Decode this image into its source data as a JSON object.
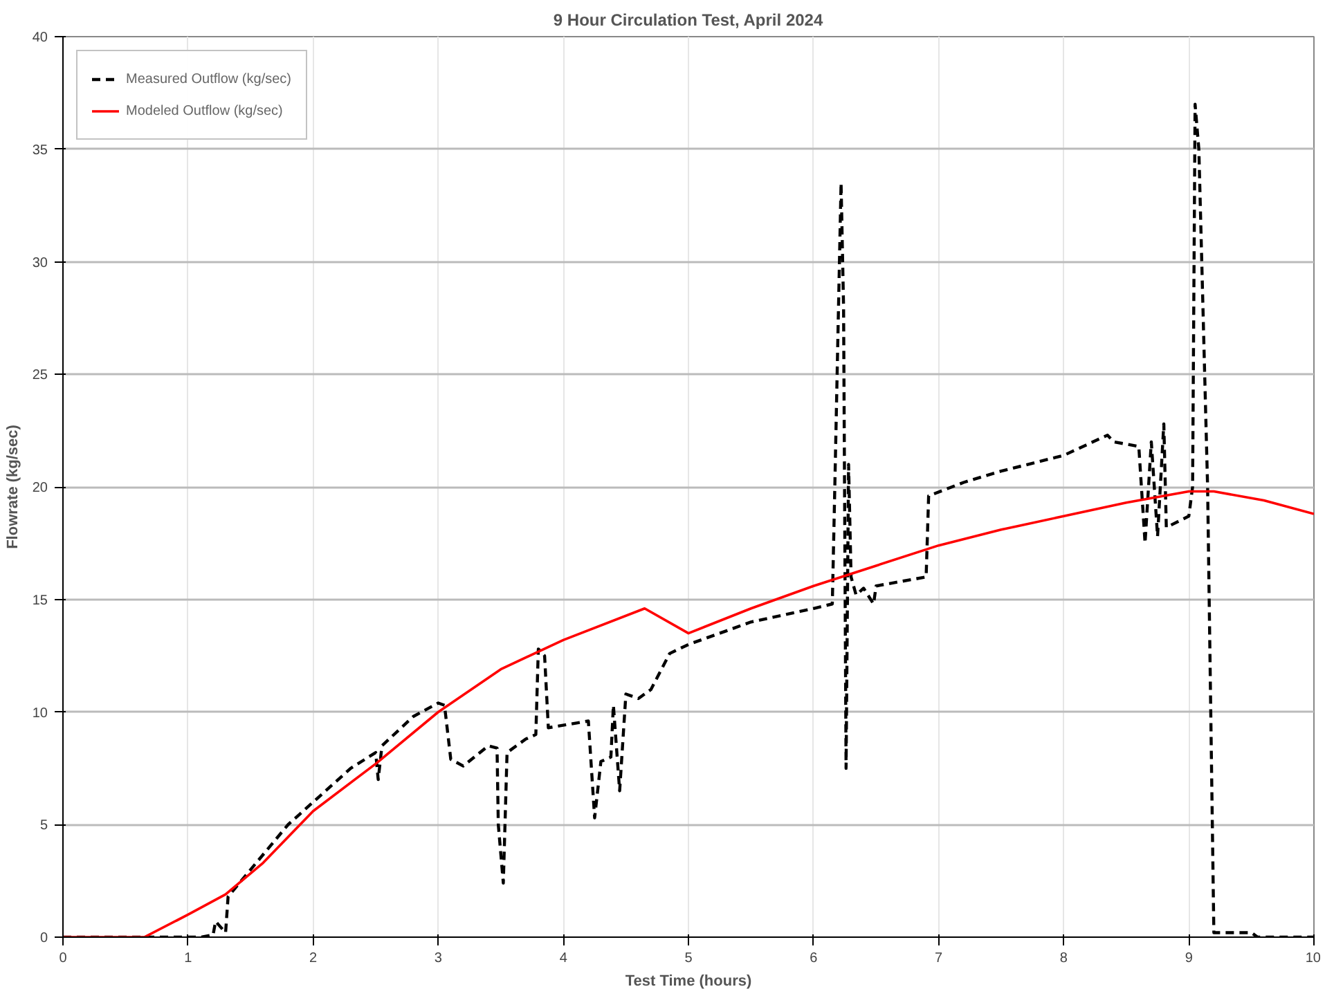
{
  "chart_data": {
    "type": "line",
    "title": "9 Hour Circulation Test, April 2024",
    "xlabel": "Test Time (hours)",
    "ylabel": "Flowrate (kg/sec)",
    "xlim": [
      0,
      10
    ],
    "xticks": [
      0,
      1,
      2,
      3,
      4,
      5,
      6,
      7,
      8,
      9,
      10
    ],
    "ylim": [
      0,
      40
    ],
    "yticks": [
      0,
      5,
      10,
      15,
      20,
      25,
      30,
      35,
      40
    ],
    "grid": true,
    "legend": "top left",
    "series": [
      {
        "name": "Measured Outflow (kg/sec)",
        "color": "#000000",
        "line_style": "dashed",
        "x": [
          0,
          1.1,
          1.2,
          1.22,
          1.3,
          1.32,
          1.5,
          1.8,
          2.0,
          2.3,
          2.5,
          2.52,
          2.55,
          2.8,
          3.0,
          3.05,
          3.1,
          3.2,
          3.4,
          3.47,
          3.48,
          3.52,
          3.55,
          3.7,
          3.78,
          3.8,
          3.85,
          3.88,
          4.2,
          4.25,
          4.3,
          4.38,
          4.4,
          4.45,
          4.5,
          4.6,
          4.7,
          4.85,
          5.0,
          5.5,
          6.0,
          6.15,
          6.17,
          6.22,
          6.24,
          6.26,
          6.28,
          6.3,
          6.34,
          6.4,
          6.48,
          6.5,
          6.9,
          6.92,
          7.2,
          7.5,
          8.0,
          8.35,
          8.4,
          8.6,
          8.65,
          8.7,
          8.75,
          8.8,
          8.82,
          9.0,
          9.03,
          9.05,
          9.08,
          9.15,
          9.2,
          9.5,
          9.55,
          10
        ],
        "values": [
          0,
          0,
          0.1,
          0.7,
          0.2,
          1.8,
          3.0,
          5.0,
          6.0,
          7.5,
          8.2,
          7.0,
          8.5,
          9.8,
          10.4,
          10.3,
          7.9,
          7.6,
          8.5,
          8.4,
          5.0,
          2.4,
          8.2,
          8.8,
          9.0,
          12.8,
          12.5,
          9.3,
          9.6,
          5.3,
          7.8,
          8.0,
          10.3,
          6.5,
          10.8,
          10.6,
          11.0,
          12.6,
          13.0,
          14.0,
          14.6,
          14.8,
          20.0,
          33.5,
          28.0,
          7.5,
          21.0,
          16.0,
          15.2,
          15.5,
          14.8,
          15.6,
          16.0,
          19.6,
          20.2,
          20.7,
          21.4,
          22.3,
          22.0,
          21.8,
          17.5,
          22.0,
          17.8,
          22.8,
          18.2,
          18.7,
          20.0,
          37.0,
          35.0,
          20.0,
          0.2,
          0.2,
          0,
          0
        ]
      },
      {
        "name": "Modeled Outflow (kg/sec)",
        "color": "#ff0000",
        "line_style": "solid",
        "x": [
          0,
          0.65,
          1,
          1.3,
          1.6,
          2,
          2.5,
          3,
          3.5,
          4,
          4.65,
          5,
          5.5,
          6,
          6.5,
          7,
          7.5,
          8,
          8.5,
          9,
          9.2,
          9.6,
          10
        ],
        "values": [
          0,
          0,
          1.0,
          1.9,
          3.3,
          5.6,
          7.7,
          10.0,
          11.9,
          13.2,
          14.6,
          13.5,
          14.6,
          15.6,
          16.5,
          17.4,
          18.1,
          18.7,
          19.3,
          19.8,
          19.8,
          19.4,
          18.8
        ]
      }
    ]
  }
}
